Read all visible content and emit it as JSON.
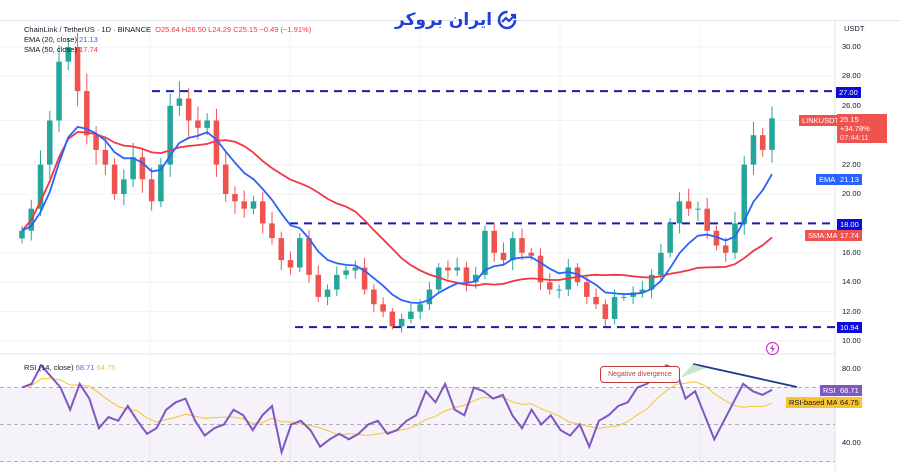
{
  "header": {
    "symbol": "ChainLink / TetherUS · 1D · BINANCE",
    "o": "O25.64",
    "h": "H26.50",
    "l": "L24.29",
    "c": "C25.15",
    "chg": "−0.49 (−1.91%)",
    "ema_label": "EMA (20, close)",
    "ema_val": "21.13",
    "sma_label": "SMA (50, close)",
    "sma_val": "17.74",
    "rsi_label": "RSI (14, close)",
    "rsi_val": "68.71",
    "rsi_ma_val": "64.75"
  },
  "logo": {
    "text": "ایران بروکر"
  },
  "colors": {
    "up": "#26a69a",
    "down": "#ef5350",
    "ema": "#2962ff",
    "sma": "#f23645",
    "level": "#1a1ab0",
    "rsi": "#7e57c2",
    "rsi_ma": "#f7c431"
  },
  "axis": {
    "currency": "USDT",
    "price_ticks": [
      "30.00",
      "28.00",
      "26.00",
      "22.00",
      "20.00",
      "16.00",
      "14.00",
      "12.00",
      "10.00"
    ],
    "rsi_ticks": [
      "80.00",
      "40.00"
    ]
  },
  "tags": {
    "level_27": "27.00",
    "symbol": "LINKUSDT",
    "price": "25.15",
    "pct": "+34.78%",
    "countdown": "07:44:11",
    "ema_name": "EMA",
    "ema": "21.13",
    "level_18": "18.00",
    "sma_name": "SMA:MA",
    "sma": "17.74",
    "level_1094": "10.94",
    "rsi_name": "RSI",
    "rsi": "68.71",
    "rsi_ma_name": "RSI-based MA",
    "rsi_ma": "64.75"
  },
  "annotation": "Negative divergence",
  "chart_data": {
    "type": "candlestick",
    "title": "ChainLink / TetherUS 1D",
    "ylim": [
      9.5,
      31.5
    ],
    "levels": [
      27.0,
      18.0,
      10.94
    ],
    "closes": [
      17.5,
      19,
      22,
      25,
      29,
      30,
      27,
      24,
      23,
      22,
      20,
      21,
      22.5,
      21,
      19.5,
      22,
      26,
      26.5,
      25,
      24.5,
      25,
      22,
      20,
      19.5,
      19,
      19.5,
      18,
      17,
      15.5,
      15,
      17,
      14.5,
      13,
      13.5,
      14.5,
      14.8,
      15,
      13.5,
      12.5,
      12,
      11,
      11.5,
      12,
      12.5,
      13.5,
      15,
      14.8,
      15,
      14,
      14.5,
      17.5,
      16,
      15.5,
      17,
      16,
      15.8,
      14,
      13.5,
      13.5,
      15,
      14,
      13,
      12.5,
      11.5,
      13,
      13,
      13.3,
      13.5,
      14.5,
      16,
      18,
      19.5,
      19,
      19,
      17.5,
      16.5,
      16,
      18,
      22,
      24,
      23,
      25.15
    ],
    "rsi": {
      "ylim": [
        28,
        90
      ],
      "bands": [
        70,
        50,
        30
      ],
      "values": [
        70,
        72,
        82,
        76,
        70,
        58,
        72,
        64,
        48,
        54,
        52,
        60,
        52,
        45,
        48,
        58,
        62,
        64,
        52,
        44,
        48,
        50,
        58,
        55,
        47,
        55,
        60,
        35,
        50,
        52,
        47,
        38,
        42,
        45,
        42,
        45,
        50,
        52,
        45,
        47,
        52,
        55,
        68,
        62,
        72,
        58,
        55,
        70,
        68,
        64,
        66,
        55,
        48,
        58,
        50,
        55,
        47,
        44,
        50,
        38,
        52,
        55,
        60,
        62,
        70,
        72,
        76,
        82,
        80,
        64,
        68,
        55,
        42,
        52,
        62,
        72,
        68,
        66,
        68.71
      ]
    }
  }
}
